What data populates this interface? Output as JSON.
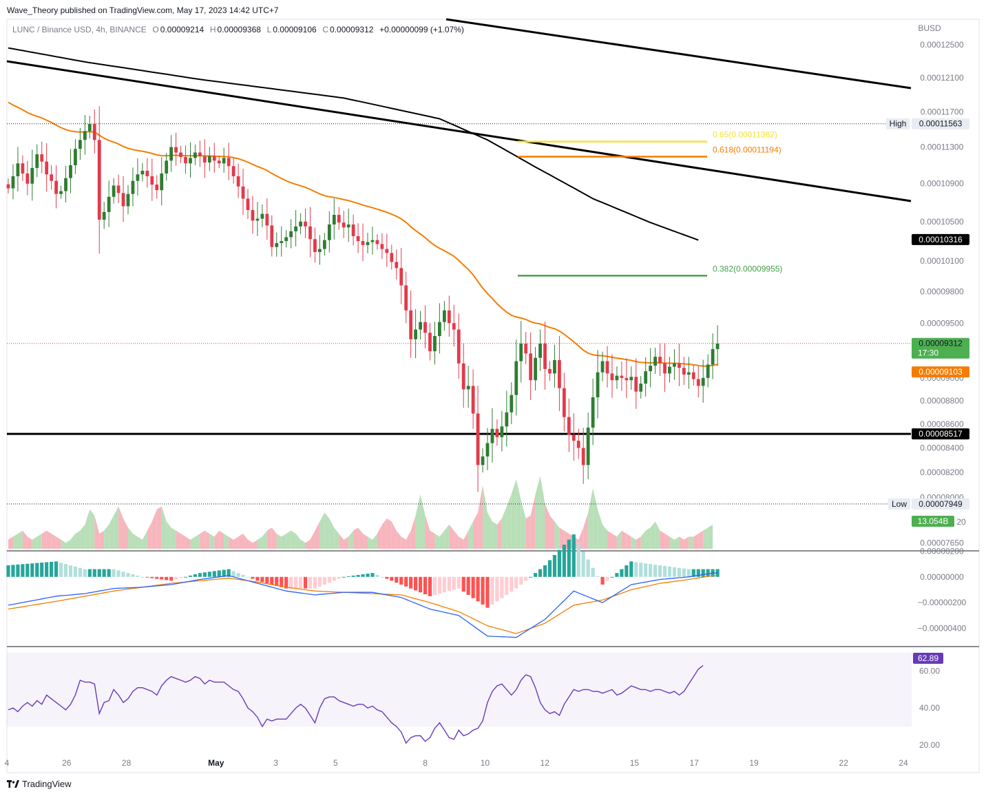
{
  "publisher": "Wave_Theory published on TradingView.com, May 17, 2023 14:42 UTC+7",
  "legend": {
    "symbol": "LUNC / Binance USD, 4h, BINANCE",
    "o_label": "O",
    "o": "0.00009214",
    "h_label": "H",
    "h": "0.00009368",
    "l_label": "L",
    "l": "0.00009106",
    "c_label": "C",
    "c": "0.00009312",
    "change": "+0.00000099 (+1.07%)"
  },
  "currency": "BUSD",
  "footer": "TradingView",
  "colors": {
    "up": "#26a69a",
    "down": "#ef5350",
    "candle_up": "#2e7d32",
    "candle_down": "#e23a4a",
    "ema": "#f57c00",
    "ma200": "#000000",
    "macd": "#2962ff",
    "signal": "#f57c00",
    "rsi": "#673ab7",
    "fib065": "#f5e131",
    "fib0618": "#f57c00",
    "fib0382": "#43a047",
    "hist_up_strong": "#26a69a",
    "hist_up_weak": "#b2dfdb",
    "hist_down_strong": "#ff5252",
    "hist_down_weak": "#ffcdd2",
    "vol_up": "#b9dfb9",
    "vol_down": "#f7b6be"
  },
  "chart_data": [
    {
      "type": "candlestick",
      "panel": "price",
      "x_range_days": [
        24,
        24.8
      ],
      "ylim": [
        7.6e-05,
        0.000128
      ],
      "y_scale": "log",
      "x_ticks": [
        {
          "label": "4",
          "day": 24
        },
        {
          "label": "26",
          "day": 26
        },
        {
          "label": "28",
          "day": 28
        },
        {
          "label": "May",
          "day": 31
        },
        {
          "label": "3",
          "day": 33
        },
        {
          "label": "5",
          "day": 35
        },
        {
          "label": "8",
          "day": 38
        },
        {
          "label": "10",
          "day": 40
        },
        {
          "label": "12",
          "day": 42
        },
        {
          "label": "15",
          "day": 45
        },
        {
          "label": "17",
          "day": 47
        },
        {
          "label": "19",
          "day": 49
        },
        {
          "label": "22",
          "day": 52
        },
        {
          "label": "24",
          "day": 54
        }
      ],
      "y_ticks": [
        "0.00012500",
        "0.00012100",
        "0.00011700",
        "0.00011300",
        "0.00010900",
        "0.00010500",
        "0.00010100",
        "0.00009800",
        "0.00009500",
        "0.00009000",
        "0.00008800",
        "0.00008600",
        "0.00008400",
        "0.00008200",
        "0.00008000",
        "0.00007650"
      ],
      "y_tick_values": [
        0.000125,
        0.000121,
        0.000117,
        0.000113,
        0.000109,
        0.000105,
        0.000101,
        9.8e-05,
        9.5e-05,
        9e-05,
        8.8e-05,
        8.6e-05,
        8.4e-05,
        8.2e-05,
        8e-05,
        7.65e-05
      ],
      "price_labels": {
        "high_label": "High",
        "high": "0.00011563",
        "low_label": "Low",
        "low": "0.00007949",
        "last": "0.00009312",
        "countdown": "17:30",
        "ema": "0.00009103",
        "ma200": "0.00010316",
        "support": "0.00008517",
        "volume": "13.054B",
        "volume_tick_partial": "20"
      },
      "fib_levels": [
        {
          "label": "0.65(0.00011362)",
          "value": 0.00011362,
          "color": "#f5e131"
        },
        {
          "label": "0.618(0.00011194)",
          "value": 0.00011194,
          "color": "#f57c00"
        },
        {
          "label": "0.382(0.00009955)",
          "value": 9.955e-05,
          "color": "#43a047"
        }
      ],
      "support_value": 8.517e-05,
      "last_value": 9.312e-05,
      "high_value": 0.00011563,
      "low_value": 7.949e-05,
      "closes": [
        0.0001085,
        0.0001098,
        0.0001112,
        0.0001101,
        0.000109,
        0.0001107,
        0.0001122,
        0.0001114,
        0.00011,
        0.0001093,
        0.0001079,
        0.0001082,
        0.0001096,
        0.000111,
        0.0001128,
        0.0001138,
        0.0001148,
        0.0001156,
        0.0001138,
        0.0001052,
        0.000106,
        0.0001076,
        0.0001088,
        0.000108,
        0.0001066,
        0.0001079,
        0.0001093,
        0.00011,
        0.0001104,
        0.0001098,
        0.0001089,
        0.0001083,
        0.0001101,
        0.0001115,
        0.000113,
        0.0001124,
        0.0001119,
        0.0001112,
        0.0001118,
        0.0001124,
        0.000112,
        0.0001113,
        0.000112,
        0.0001115,
        0.0001112,
        0.0001118,
        0.0001109,
        0.0001098,
        0.0001087,
        0.0001074,
        0.0001062,
        0.0001051,
        0.0001053,
        0.0001058,
        0.0001046,
        0.0001024,
        0.0001028,
        0.000103,
        0.0001034,
        0.000104,
        0.0001045,
        0.000105,
        0.0001045,
        0.0001032,
        0.0001019,
        0.0001022,
        0.0001031,
        0.0001047,
        0.0001057,
        0.0001049,
        0.0001044,
        0.0001047,
        0.0001035,
        0.000103,
        0.0001026,
        0.0001029,
        0.0001031,
        0.0001027,
        0.0001022,
        0.0001018,
        0.0001009,
        0.0001003,
        9.86e-05,
        9.62e-05,
        9.35e-05,
        9.44e-05,
        9.51e-05,
        9.41e-05,
        9.24e-05,
        9.38e-05,
        9.51e-05,
        9.62e-05,
        9.5e-05,
        9.44e-05,
        9.13e-05,
        8.9e-05,
        8.93e-05,
        8.69e-05,
        8.26e-05,
        8.33e-05,
        8.44e-05,
        8.56e-05,
        8.49e-05,
        8.58e-05,
        8.7e-05,
        8.85e-05,
        9.15e-05,
        9.31e-05,
        9.22e-05,
        8.98e-05,
        9.18e-05,
        9.31e-05,
        9.08e-05,
        9.04e-05,
        9.16e-05,
        8.91e-05,
        8.66e-05,
        8.51e-05,
        8.46e-05,
        8.4e-05,
        8.26e-05,
        8.57e-05,
        8.83e-05,
        9.05e-05,
        9.15e-05,
        9.04e-05,
        8.98e-05,
        9.02e-05,
        9e-05,
        8.98e-05,
        9.01e-05,
        8.88e-05,
        8.95e-05,
        9.06e-05,
        9.11e-05,
        9.19e-05,
        9.13e-05,
        9.04e-05,
        9.1e-05,
        9.13e-05,
        9.09e-05,
        9.03e-05,
        9.05e-05,
        8.99e-05,
        8.93e-05,
        9e-05,
        9.12e-05,
        9.26e-05,
        9.31e-05
      ]
    },
    {
      "type": "area",
      "panel": "volume",
      "values": [
        3,
        4,
        5,
        6,
        4,
        3,
        4,
        5,
        6,
        5,
        4,
        3,
        2,
        3,
        5,
        6,
        8,
        13,
        11,
        5,
        6,
        8,
        11,
        14,
        10,
        7,
        5,
        4,
        3,
        6,
        9,
        13,
        14,
        9,
        7,
        6,
        5,
        4,
        3,
        4,
        5,
        6,
        5,
        4,
        6,
        5,
        4,
        3,
        4,
        5,
        3,
        2,
        3,
        4,
        6,
        7,
        5,
        4,
        5,
        6,
        5,
        3,
        2,
        3,
        6,
        9,
        12,
        10,
        7,
        5,
        3,
        4,
        6,
        7,
        5,
        4,
        3,
        5,
        8,
        10,
        9,
        6,
        4,
        3,
        6,
        11,
        18,
        11,
        6,
        5,
        4,
        6,
        8,
        6,
        4,
        3,
        6,
        9,
        12,
        21,
        12,
        9,
        8,
        10,
        14,
        18,
        23,
        16,
        10,
        11,
        18,
        24,
        15,
        11,
        9,
        7,
        6,
        5,
        4,
        3,
        7,
        12,
        20,
        13,
        8,
        6,
        5,
        4,
        6,
        5,
        4,
        3,
        4,
        6,
        7,
        9,
        6,
        5,
        4,
        3,
        4,
        3,
        4,
        4,
        5,
        6,
        7,
        8
      ],
      "up_mask": "candle direction"
    },
    {
      "type": "line+bar",
      "panel": "macd",
      "ylim": [
        -5.2e-06,
        1.7e-06
      ],
      "y_ticks": [
        "0.00000200",
        "0.00000000",
        "−0.00000200",
        "−0.00000400"
      ],
      "y_tick_values": [
        2e-06,
        0,
        -2e-06,
        -4e-06
      ],
      "macd_anchors": [
        [
          0,
          -2.2e-06
        ],
        [
          10,
          -1.5e-06
        ],
        [
          16,
          -1.3e-06
        ],
        [
          22,
          -9e-07
        ],
        [
          28,
          -8e-07
        ],
        [
          34,
          -6e-07
        ],
        [
          40,
          -2e-07
        ],
        [
          46,
          1e-07
        ],
        [
          52,
          -5e-07
        ],
        [
          58,
          -1.1e-06
        ],
        [
          64,
          -1.4e-06
        ],
        [
          70,
          -1.2e-06
        ],
        [
          76,
          -1.2e-06
        ],
        [
          82,
          -1.6e-06
        ],
        [
          88,
          -2.5e-06
        ],
        [
          94,
          -3e-06
        ],
        [
          100,
          -4.6e-06
        ],
        [
          106,
          -4.7e-06
        ],
        [
          112,
          -3.3e-06
        ],
        [
          118,
          -1.1e-06
        ],
        [
          124,
          -2e-06
        ],
        [
          130,
          -6e-07
        ],
        [
          136,
          -2e-07
        ],
        [
          142,
          0.0
        ],
        [
          147,
          3e-07
        ]
      ],
      "signal_anchors": [
        [
          0,
          -2.5e-06
        ],
        [
          10,
          -1.9e-06
        ],
        [
          16,
          -1.5e-06
        ],
        [
          22,
          -1.1e-06
        ],
        [
          28,
          -8e-07
        ],
        [
          34,
          -5e-07
        ],
        [
          40,
          -3e-07
        ],
        [
          46,
          -1e-07
        ],
        [
          52,
          -4e-07
        ],
        [
          58,
          -8e-07
        ],
        [
          64,
          -1.1e-06
        ],
        [
          70,
          -1.2e-06
        ],
        [
          76,
          -1.3e-06
        ],
        [
          82,
          -1.4e-06
        ],
        [
          88,
          -2e-06
        ],
        [
          94,
          -2.7e-06
        ],
        [
          100,
          -3.8e-06
        ],
        [
          106,
          -4.4e-06
        ],
        [
          112,
          -3.6e-06
        ],
        [
          118,
          -2.2e-06
        ],
        [
          124,
          -1.8e-06
        ],
        [
          130,
          -1e-06
        ],
        [
          136,
          -5e-07
        ],
        [
          142,
          -2e-07
        ],
        [
          147,
          1e-07
        ]
      ]
    },
    {
      "type": "line",
      "panel": "rsi",
      "ylim": [
        14,
        71
      ],
      "y_ticks": [
        "60.00",
        "40.00",
        "20.00"
      ],
      "y_tick_values": [
        60,
        40,
        20
      ],
      "band": [
        30,
        70
      ],
      "last_label": "62.89",
      "values": [
        39,
        40,
        38,
        41,
        43,
        41,
        44,
        42,
        47,
        45,
        43,
        41,
        39,
        42,
        47,
        55,
        54,
        54,
        53,
        37,
        43,
        44,
        50,
        47,
        43,
        45,
        49,
        51,
        51,
        50,
        49,
        47,
        52,
        55,
        57,
        56,
        55,
        54,
        55,
        57,
        56,
        53,
        55,
        54,
        54,
        54,
        52,
        50,
        49,
        45,
        40,
        38,
        35,
        30,
        34,
        33,
        34,
        34,
        34,
        37,
        40,
        42,
        40,
        36,
        32,
        40,
        45,
        46,
        46,
        44,
        43,
        42,
        41,
        42,
        42,
        40,
        41,
        39,
        38,
        35,
        32,
        30,
        27,
        21,
        24,
        25,
        25,
        22,
        24,
        29,
        32,
        28,
        24,
        23,
        28,
        25,
        26,
        28,
        29,
        33,
        43,
        49,
        52,
        53,
        50,
        47,
        50,
        55,
        58,
        57,
        51,
        43,
        39,
        37,
        38,
        36,
        42,
        46,
        50,
        49,
        50,
        50,
        49,
        49,
        48,
        49,
        50,
        47,
        48,
        50,
        52,
        51,
        50,
        50,
        49,
        50,
        50,
        49,
        48,
        49,
        47,
        49,
        53,
        57,
        61,
        63
      ]
    }
  ]
}
